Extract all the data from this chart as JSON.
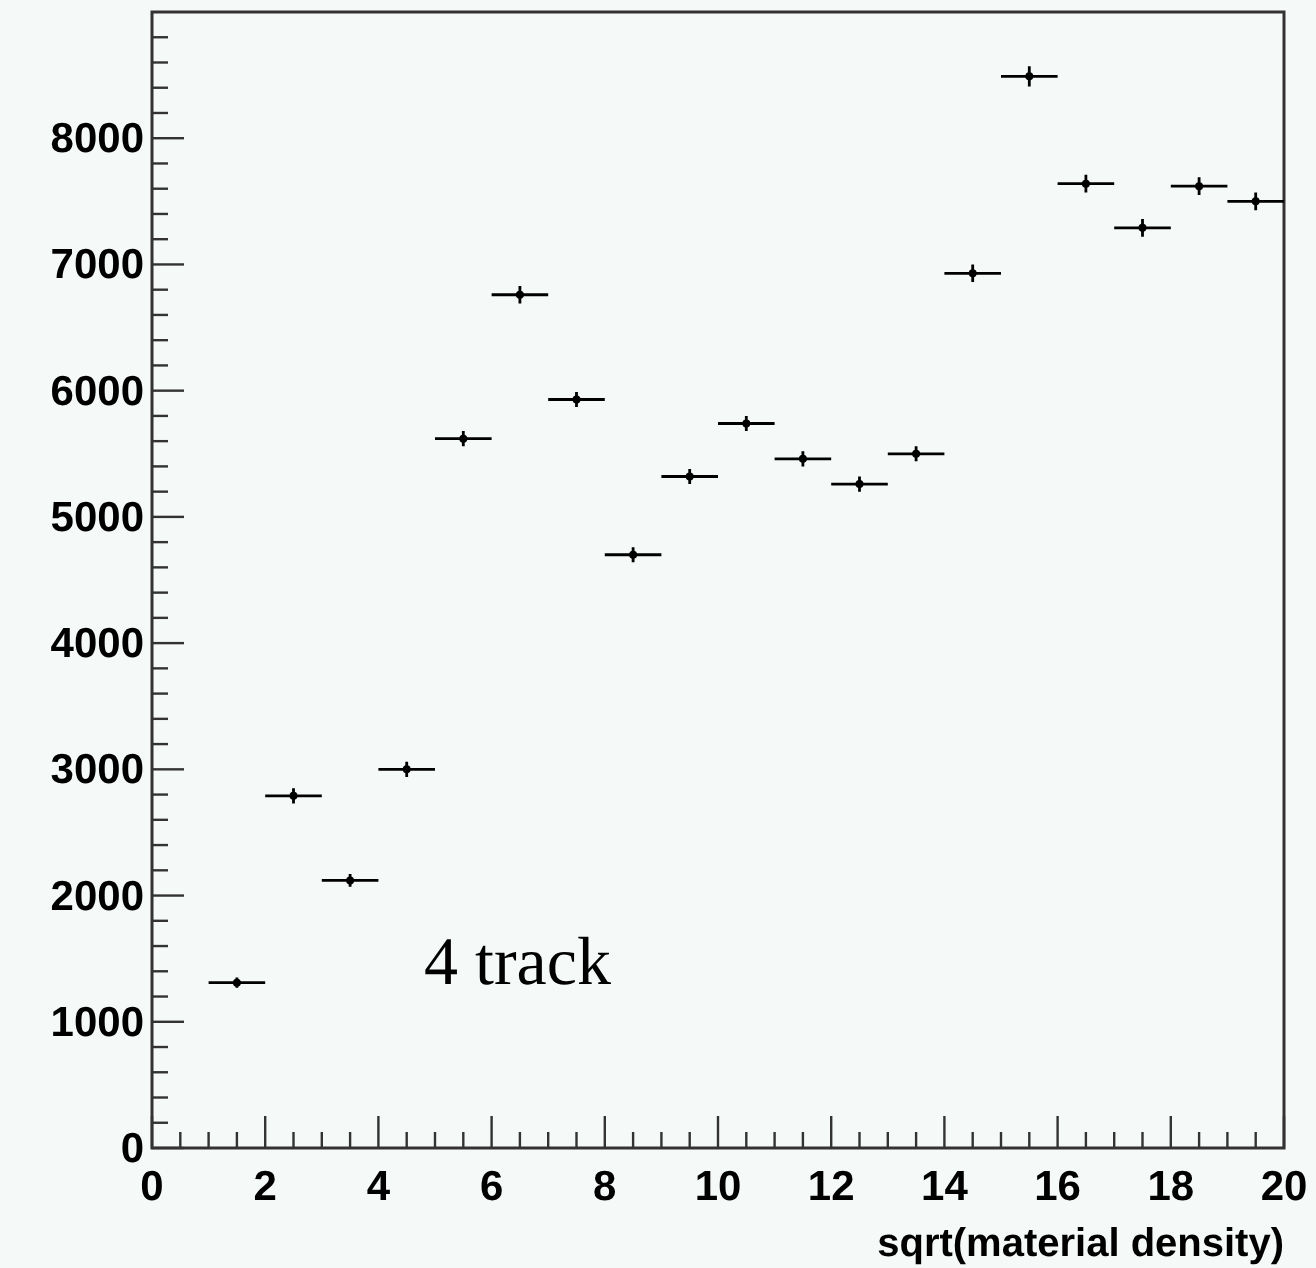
{
  "chart_data": {
    "type": "scatter",
    "xlabel": "sqrt(material density)",
    "annotations": [
      "4 track"
    ],
    "x": [
      1.5,
      2.5,
      3.5,
      4.5,
      5.5,
      6.5,
      7.5,
      8.5,
      9.5,
      10.5,
      11.5,
      12.5,
      13.5,
      14.5,
      15.5,
      16.5,
      17.5,
      18.5,
      19.5
    ],
    "series": [
      {
        "color": "#000000",
        "values": [
          1310,
          2790,
          2120,
          3000,
          5620,
          6760,
          5930,
          4700,
          5320,
          5740,
          5460,
          5260,
          5500,
          6930,
          8490,
          7640,
          7290,
          7620,
          7500
        ],
        "errors": [
          40,
          60,
          50,
          60,
          60,
          70,
          60,
          60,
          60,
          60,
          60,
          60,
          60,
          70,
          80,
          70,
          70,
          70,
          70
        ],
        "xerrors": [
          0.5,
          0.5,
          0.5,
          0.5,
          0.5,
          0.5,
          0.5,
          0.5,
          0.5,
          0.5,
          0.5,
          0.5,
          0.5,
          0.5,
          0.5,
          0.5,
          0.5,
          0.5,
          0.5
        ]
      }
    ],
    "xlim": [
      0,
      20
    ],
    "xticks": [
      0,
      2,
      4,
      6,
      8,
      10,
      12,
      14,
      16,
      18,
      20
    ],
    "ylim": [
      0,
      9000
    ],
    "yticks": [
      0,
      1000,
      2000,
      3000,
      4000,
      5000,
      6000,
      7000,
      8000
    ],
    "marker": "circle",
    "grid": false
  }
}
